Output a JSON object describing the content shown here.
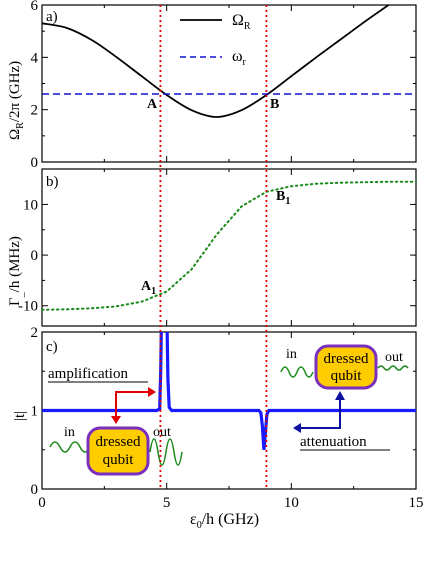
{
  "chart_data": [
    {
      "panel": "a)",
      "type": "line",
      "ylabel": "Ω_R/2π (GHz)",
      "xlim": [
        0,
        15
      ],
      "ylim": [
        0,
        6
      ],
      "yticks": [
        "0",
        "2",
        "4",
        "6"
      ],
      "legend_placement": "top-right",
      "series": [
        {
          "name": "Ω_R",
          "style": "solid",
          "color": "#000000",
          "x": [
            0,
            1,
            2,
            3,
            4,
            5,
            6,
            7,
            8,
            9,
            10,
            11,
            12,
            13,
            13.9
          ],
          "y": [
            5.3,
            5.12,
            4.66,
            4.0,
            3.28,
            2.56,
            1.98,
            1.72,
            1.98,
            2.56,
            3.28,
            4.0,
            4.7,
            5.4,
            6.0
          ]
        },
        {
          "name": "ω_r",
          "style": "dashed",
          "color": "#1010d0",
          "x": [
            0,
            15
          ],
          "y": [
            2.6,
            2.6
          ]
        }
      ],
      "annotations": [
        {
          "text": "A",
          "x": 4.6,
          "y": 2.6
        },
        {
          "text": "B",
          "x": 9.0,
          "y": 2.6
        }
      ]
    },
    {
      "panel": "b)",
      "type": "line",
      "ylabel": "Γ_/h (MHz)",
      "xlim": [
        0,
        15
      ],
      "ylim": [
        -14,
        17
      ],
      "yticks": [
        "-10",
        "0",
        "10"
      ],
      "series": [
        {
          "name": "",
          "style": "dotted",
          "color": "#1b8a1b",
          "x": [
            0,
            1,
            2,
            3,
            4,
            5,
            6,
            7,
            8,
            9,
            10,
            11,
            12,
            13,
            14,
            15
          ],
          "y": [
            -10.8,
            -10.7,
            -10.5,
            -10.1,
            -9.2,
            -7.2,
            -2.8,
            4.0,
            9.6,
            12.5,
            13.6,
            14.1,
            14.3,
            14.4,
            14.5,
            14.5
          ]
        }
      ],
      "annotations": [
        {
          "text": "A",
          "sub": "1",
          "x": 4.6,
          "y": -8.6
        },
        {
          "text": "B",
          "sub": "1",
          "x": 9.5,
          "y": 12.3
        }
      ]
    },
    {
      "panel": "c)",
      "type": "line",
      "ylabel": "|t|",
      "xlabel": "ε_0/h (GHz)",
      "xlim": [
        0,
        15
      ],
      "ylim": [
        0,
        2
      ],
      "xticks": [
        "0",
        "5",
        "10",
        "15"
      ],
      "yticks": [
        "0",
        "1",
        "2"
      ],
      "series": [
        {
          "name": "|t|",
          "style": "solid",
          "color": "#1a1aff",
          "x": [
            0,
            4.6,
            4.72,
            4.76,
            4.8,
            4.84,
            4.9,
            4.95,
            5.0,
            5.05,
            5.1,
            5.2,
            8.7,
            8.78,
            8.84,
            8.9,
            8.96,
            9.02,
            9.1,
            15
          ],
          "y": [
            1.0,
            1.0,
            1.02,
            1.5,
            2.4,
            2.4,
            2.4,
            2.4,
            2.4,
            1.4,
            1.04,
            1.0,
            1.0,
            0.97,
            0.8,
            0.5,
            0.72,
            0.95,
            1.0,
            1.0
          ]
        }
      ]
    }
  ],
  "vertical_markers": {
    "x": [
      4.75,
      9.0
    ],
    "color": "#e00000"
  },
  "texts": {
    "panel_a": "a)",
    "panel_b": "b)",
    "panel_c": "c)",
    "legend_omega_main": "Ω",
    "legend_omega_sub": "R",
    "legend_w_main": "ω",
    "legend_w_sub": "r",
    "ylabel_a_main": "Ω",
    "ylabel_a_sub": "R",
    "ylabel_a_tail": "/2π (GHz)",
    "ylabel_b_main": "Γ",
    "ylabel_b_sub": "_",
    "ylabel_b_tail": "/h (MHz)",
    "ylabel_c": "|t|",
    "xlabel_main": "ε",
    "xlabel_sub": "0",
    "xlabel_tail": "/h (GHz)",
    "label_A": "A",
    "label_B": "B",
    "label_A1_main": "A",
    "label_B1_main": "B",
    "label_1": "1",
    "amplification": "amplification",
    "attenuation": "attenuation",
    "in_left": "in",
    "out_left": "out",
    "in_right": "in",
    "out_right": "out",
    "dressed": "dressed",
    "qubit": "qubit"
  }
}
